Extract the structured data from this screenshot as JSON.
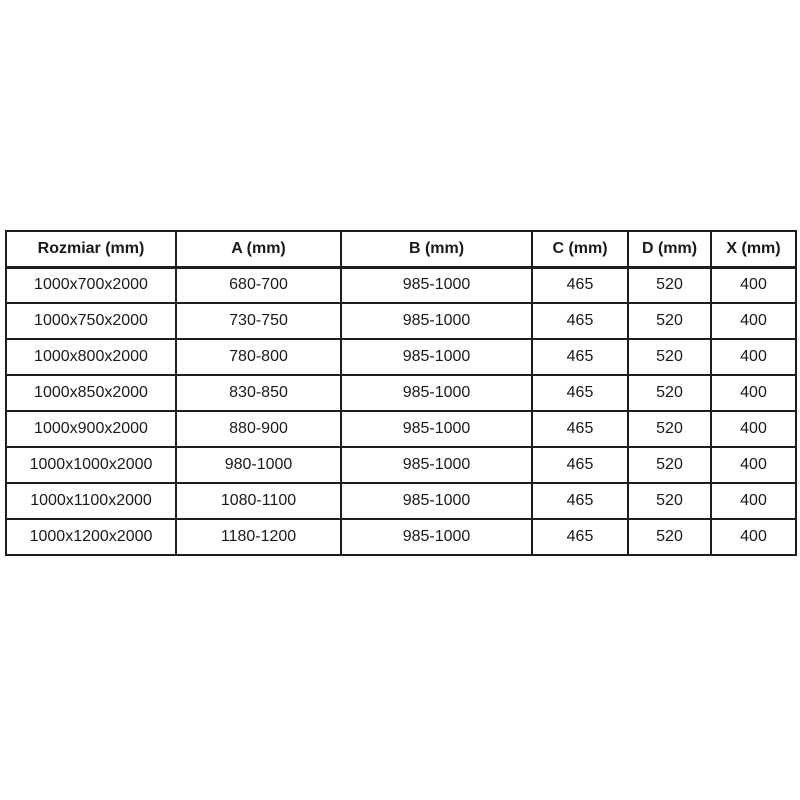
{
  "table": {
    "headers": [
      "Rozmiar (mm)",
      "A (mm)",
      "B (mm)",
      "C (mm)",
      "D (mm)",
      "X (mm)"
    ],
    "rows": [
      [
        "1000x700x2000",
        "680-700",
        "985-1000",
        "465",
        "520",
        "400"
      ],
      [
        "1000x750x2000",
        "730-750",
        "985-1000",
        "465",
        "520",
        "400"
      ],
      [
        "1000x800x2000",
        "780-800",
        "985-1000",
        "465",
        "520",
        "400"
      ],
      [
        "1000x850x2000",
        "830-850",
        "985-1000",
        "465",
        "520",
        "400"
      ],
      [
        "1000x900x2000",
        "880-900",
        "985-1000",
        "465",
        "520",
        "400"
      ],
      [
        "1000x1000x2000",
        "980-1000",
        "985-1000",
        "465",
        "520",
        "400"
      ],
      [
        "1000x1100x2000",
        "1080-1100",
        "985-1000",
        "465",
        "520",
        "400"
      ],
      [
        "1000x1200x2000",
        "1180-1200",
        "985-1000",
        "465",
        "520",
        "400"
      ]
    ]
  },
  "colors": {
    "border": "#1e1e1e",
    "text": "#1a1a1a",
    "background": "#ffffff"
  }
}
